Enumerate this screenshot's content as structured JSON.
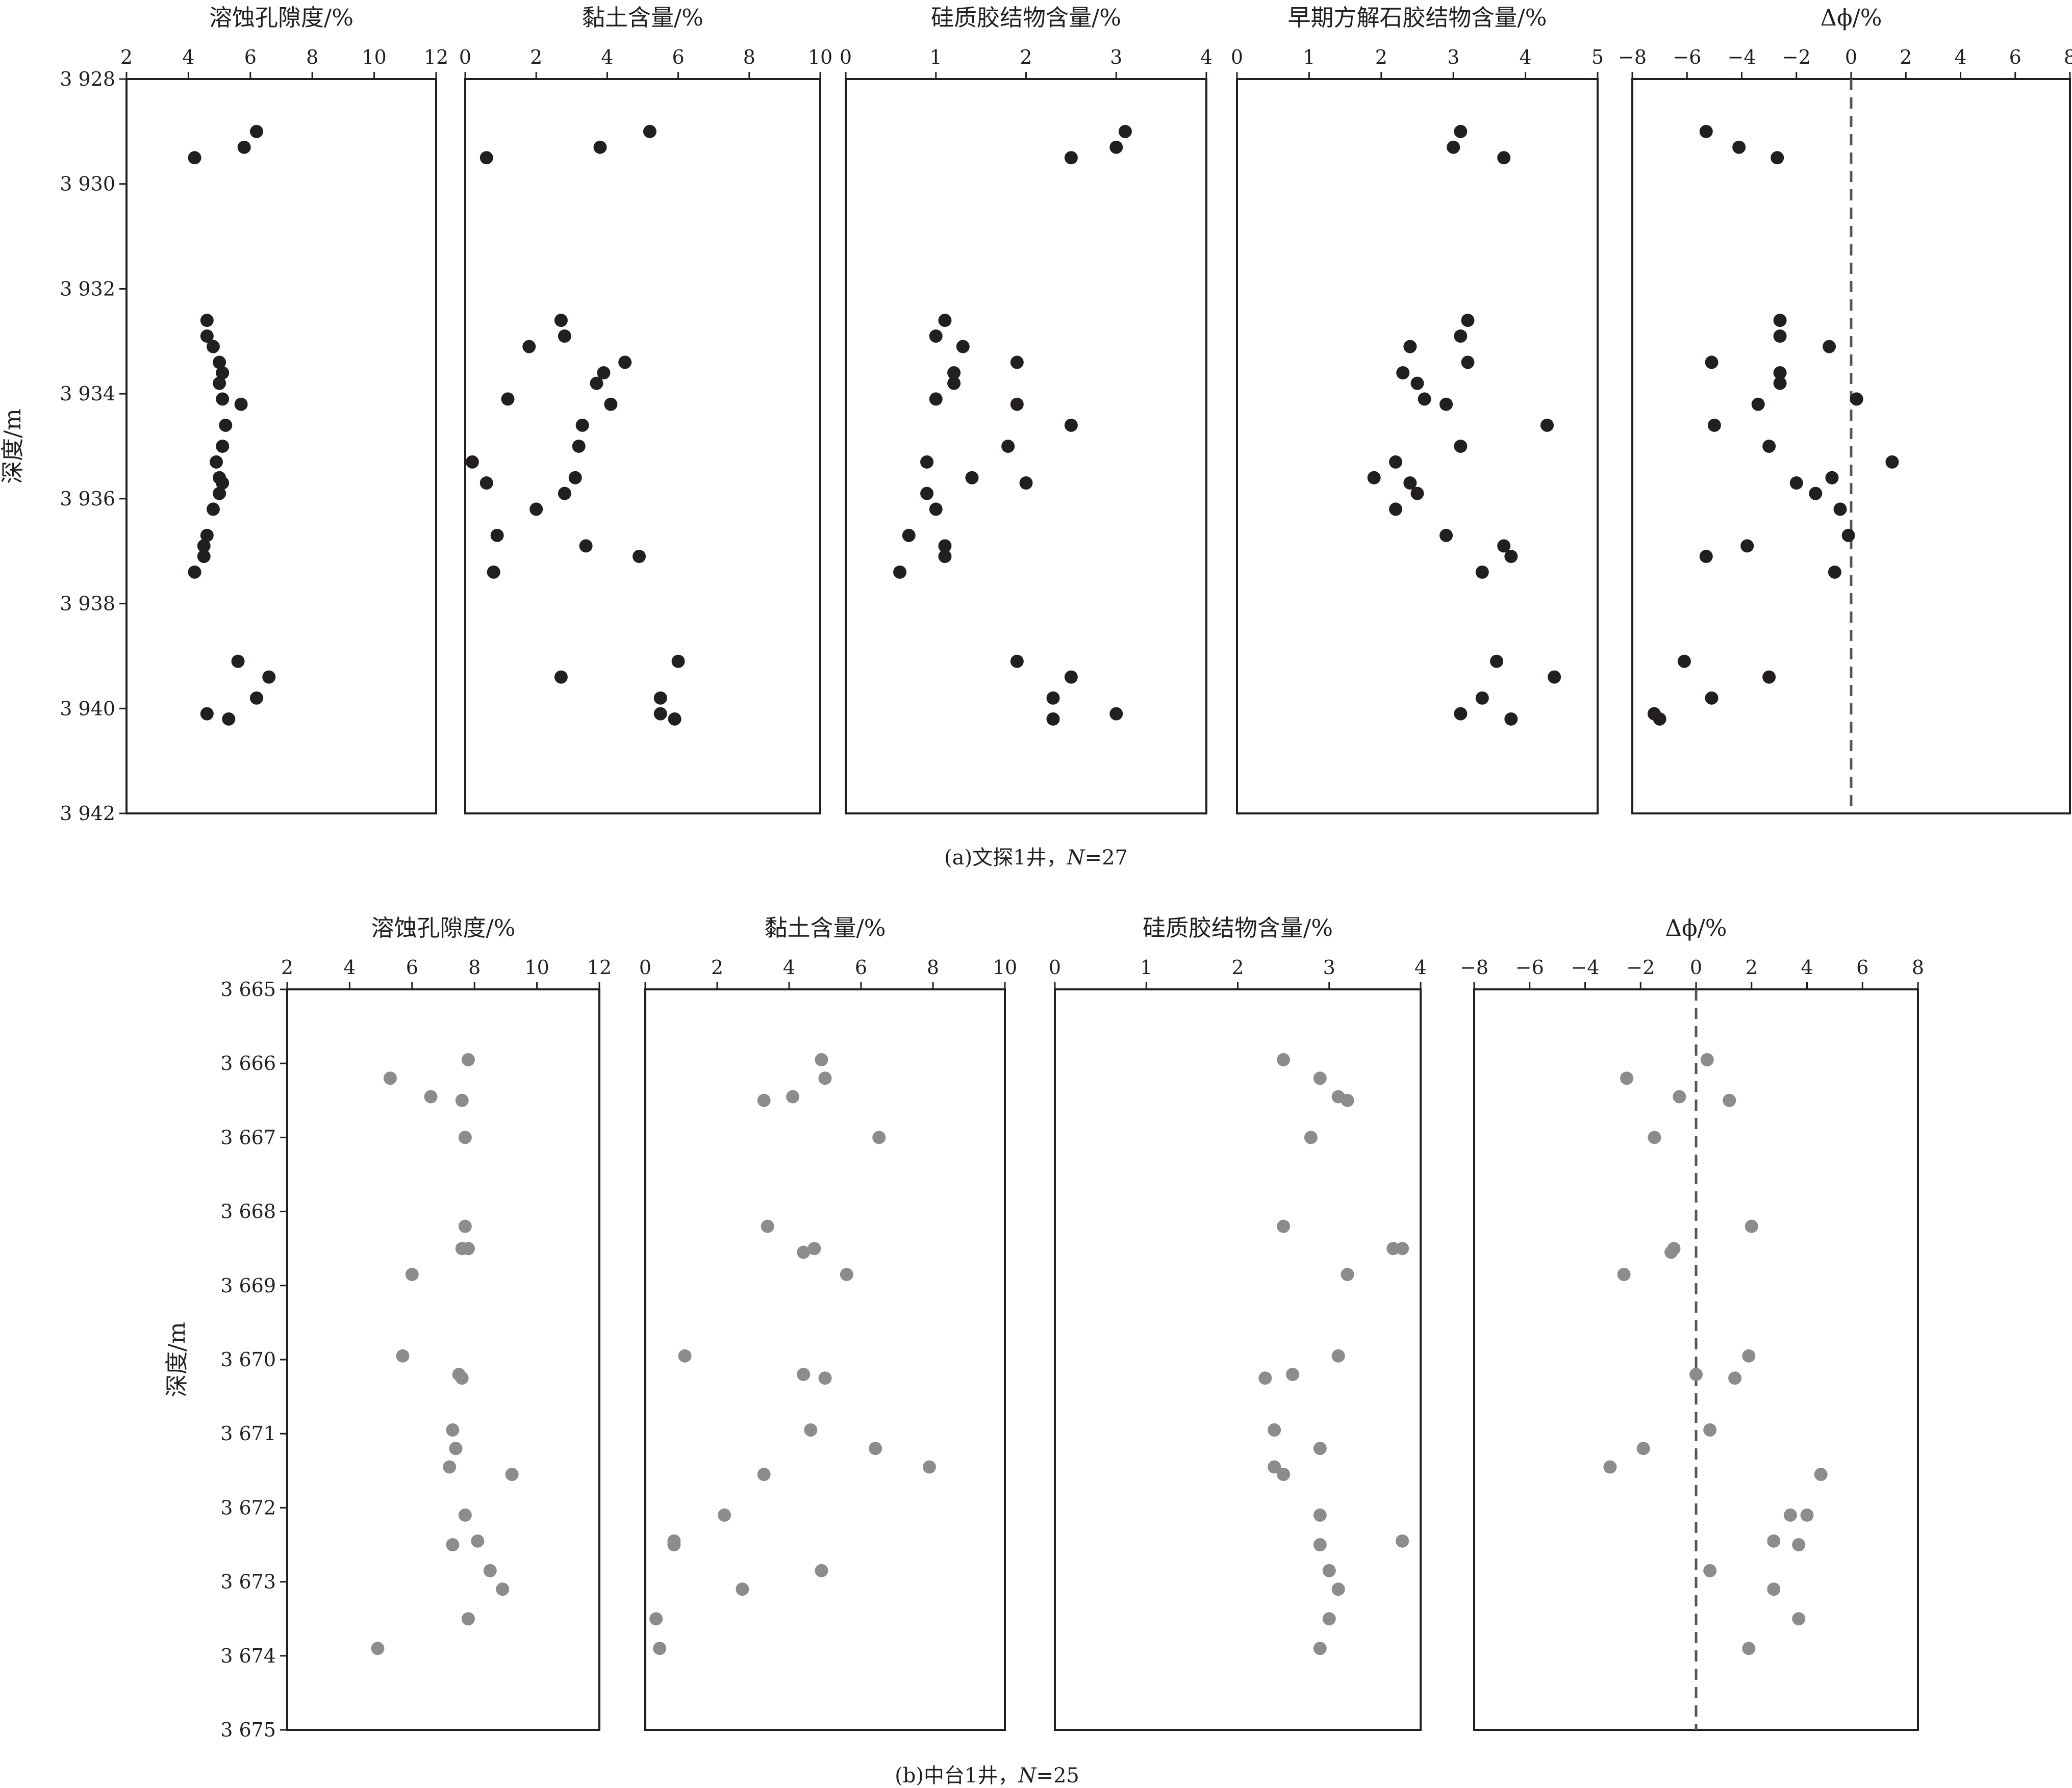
{
  "chart_data": [
    {
      "type": "scatter",
      "id": "a",
      "caption": {
        "prefix": "(a)文探1井，",
        "n_label": "N",
        "n_value": "=27"
      },
      "ylabel": "深度/m",
      "yticks": [
        "3 928",
        "3 930",
        "3 932",
        "3 934",
        "3 936",
        "3 938",
        "3 940",
        "3 942"
      ],
      "ylim": [
        3928,
        3942
      ],
      "point_color": "#231f20",
      "depth": [
        3929.0,
        3929.3,
        3929.5,
        3932.6,
        3932.9,
        3933.1,
        3933.4,
        3933.6,
        3933.8,
        3934.1,
        3934.2,
        3934.6,
        3935.0,
        3935.3,
        3935.6,
        3935.7,
        3935.9,
        3936.2,
        3936.7,
        3936.9,
        3937.1,
        3937.4,
        3939.1,
        3939.4,
        3939.8,
        3940.1,
        3940.2
      ],
      "panels": [
        {
          "title": "溶蚀孔隙度/%",
          "xticks": [
            "2",
            "4",
            "6",
            "8",
            "10",
            "12"
          ],
          "xlim": [
            2,
            12
          ],
          "zero_line": false,
          "values": [
            6.2,
            5.8,
            4.2,
            4.6,
            4.6,
            4.8,
            5.0,
            5.1,
            5.0,
            5.1,
            5.7,
            5.2,
            5.1,
            4.9,
            5.0,
            5.1,
            5.0,
            4.8,
            4.6,
            4.5,
            4.5,
            4.2,
            5.6,
            6.6,
            6.2,
            4.6,
            5.3
          ]
        },
        {
          "title": "黏土含量/%",
          "xticks": [
            "0",
            "2",
            "4",
            "6",
            "8",
            "10"
          ],
          "xlim": [
            0,
            10
          ],
          "zero_line": false,
          "values": [
            5.2,
            3.8,
            0.6,
            2.7,
            2.8,
            1.8,
            4.5,
            3.9,
            3.7,
            1.2,
            4.1,
            3.3,
            3.2,
            0.2,
            3.1,
            0.6,
            2.8,
            2.0,
            0.9,
            3.4,
            4.9,
            0.8,
            6.0,
            2.7,
            5.5,
            5.5,
            5.9
          ]
        },
        {
          "title": "硅质胶结物含量/%",
          "xticks": [
            "0",
            "1",
            "2",
            "3",
            "4"
          ],
          "xlim": [
            0,
            4
          ],
          "zero_line": false,
          "values": [
            3.1,
            3.0,
            2.5,
            1.1,
            1.0,
            1.3,
            1.9,
            1.2,
            1.2,
            1.0,
            1.9,
            2.5,
            1.8,
            0.9,
            1.4,
            2.0,
            0.9,
            1.0,
            0.7,
            1.1,
            1.1,
            0.6,
            1.9,
            2.5,
            2.3,
            3.0,
            2.3
          ]
        },
        {
          "title": "早期方解石胶结物含量/%",
          "xticks": [
            "0",
            "1",
            "2",
            "3",
            "4",
            "5"
          ],
          "xlim": [
            0,
            5
          ],
          "zero_line": false,
          "values": [
            3.1,
            3.0,
            3.7,
            3.2,
            3.1,
            2.4,
            3.2,
            2.3,
            2.5,
            2.6,
            2.9,
            4.3,
            3.1,
            2.2,
            1.9,
            2.4,
            2.5,
            2.2,
            2.9,
            3.7,
            3.8,
            3.4,
            3.6,
            4.4,
            3.4,
            3.1,
            3.8
          ]
        },
        {
          "title": "Δϕ/%",
          "xticks": [
            "−8",
            "−6",
            "−4",
            "−2",
            "0",
            "2",
            "4",
            "6",
            "8"
          ],
          "xlim": [
            -8,
            8
          ],
          "zero_line": true,
          "values": [
            -5.3,
            -4.1,
            -2.7,
            -2.6,
            -2.6,
            -0.8,
            -5.1,
            -2.6,
            -2.6,
            0.2,
            -3.4,
            -5.0,
            -3.0,
            1.5,
            -0.7,
            -2.0,
            -1.3,
            -0.4,
            -0.1,
            -3.8,
            -5.3,
            -0.6,
            -6.1,
            -3.0,
            -5.1,
            -7.2,
            -7.0
          ]
        }
      ]
    },
    {
      "type": "scatter",
      "id": "b",
      "caption": {
        "prefix": "(b)中台1井，",
        "n_label": "N",
        "n_value": "=25"
      },
      "ylabel": "深度/m",
      "yticks": [
        "3 665",
        "3 666",
        "3 667",
        "3 668",
        "3 669",
        "3 670",
        "3 671",
        "3 672",
        "3 673",
        "3 674",
        "3 675"
      ],
      "ylim": [
        3665,
        3675
      ],
      "point_color": "#8c8c8c",
      "depth": [
        3665.95,
        3666.2,
        3666.45,
        3666.5,
        3667.0,
        3668.2,
        3668.5,
        3668.85,
        3669.95,
        3670.2,
        3670.95,
        3671.2,
        3671.45,
        3671.55,
        3672.1,
        3672.45,
        3672.5,
        3672.85,
        3673.1,
        3673.5,
        3673.9
      ],
      "panels": [
        {
          "title": "溶蚀孔隙度/%",
          "xticks": [
            "2",
            "4",
            "6",
            "8",
            "10",
            "12"
          ],
          "xlim": [
            2,
            12
          ],
          "zero_line": false,
          "values": [
            7.8,
            5.3,
            6.6,
            7.6,
            7.7,
            7.7,
            7.6,
            6.0,
            5.7,
            7.5,
            7.3,
            7.4,
            7.2,
            9.2,
            7.7,
            8.1,
            7.3,
            8.5,
            8.9,
            7.8,
            4.9
          ]
        },
        {
          "title": "黏土含量/%",
          "xticks": [
            "0",
            "2",
            "4",
            "6",
            "8",
            "10"
          ],
          "xlim": [
            0,
            10
          ],
          "zero_line": false,
          "values": [
            4.9,
            5.0,
            4.1,
            3.3,
            6.5,
            3.4,
            4.7,
            5.6,
            1.1,
            4.4,
            4.6,
            6.4,
            7.9,
            3.3,
            2.2,
            0.8,
            0.8,
            4.9,
            2.7,
            0.3,
            0.4
          ]
        },
        {
          "title": "硅质胶结物含量/%",
          "xticks": [
            "0",
            "1",
            "2",
            "3",
            "4"
          ],
          "xlim": [
            0,
            4
          ],
          "zero_line": false,
          "values": [
            2.5,
            2.9,
            3.1,
            3.2,
            2.8,
            2.5,
            3.7,
            3.2,
            3.1,
            2.6,
            2.4,
            2.9,
            2.4,
            2.5,
            2.9,
            3.8,
            2.9,
            3.0,
            3.1,
            3.0,
            2.9
          ]
        },
        {
          "title": "Δϕ/%",
          "xticks": [
            "−8",
            "−6",
            "−4",
            "−2",
            "0",
            "2",
            "4",
            "6",
            "8"
          ],
          "xlim": [
            -8,
            8
          ],
          "zero_line": true,
          "values": [
            0.4,
            -2.5,
            -0.6,
            1.2,
            -1.5,
            2.0,
            -0.8,
            -2.6,
            1.9,
            0.0,
            0.5,
            -1.9,
            -3.1,
            4.5,
            3.4,
            2.8,
            3.7,
            0.5,
            2.8,
            3.7,
            1.9
          ]
        }
      ],
      "extra_points": [
        {
          "panel": 0,
          "values": [
            7.8,
            7.6
          ],
          "depth": [
            3668.5,
            3670.25
          ]
        },
        {
          "panel": 1,
          "values": [
            4.4,
            5.0
          ],
          "depth": [
            3668.55,
            3670.25
          ]
        },
        {
          "panel": 2,
          "values": [
            2.3,
            3.8
          ],
          "depth": [
            3670.25,
            3668.5
          ]
        },
        {
          "panel": 3,
          "values": [
            -0.9,
            1.4,
            4.0
          ],
          "depth": [
            3668.55,
            3670.25,
            3672.1
          ]
        }
      ]
    }
  ]
}
